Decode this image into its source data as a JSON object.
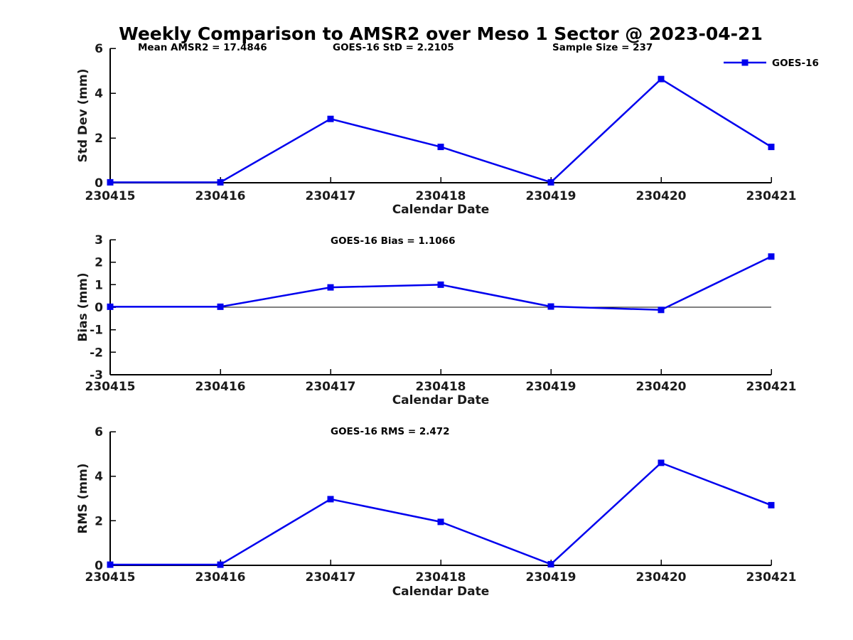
{
  "figure_title": "Weekly Comparison to AMSR2 over Meso 1 Sector @ 2023-04-21",
  "colors": {
    "line": "#0000EE",
    "axis": "#000000",
    "tick_text": "#1a1a1a",
    "zero_line": "#000000",
    "background": "#ffffff"
  },
  "legend": {
    "label": "GOES-16",
    "position": "top-right",
    "marker": "filled-square"
  },
  "chart_data": [
    {
      "type": "line",
      "name": "std-dev",
      "annotations": [
        "Mean AMSR2 = 17.4846",
        "GOES-16 StD = 2.2105",
        "Sample Size = 237"
      ],
      "ylabel": "Std Dev (mm)",
      "xlabel": "Calendar Date",
      "categories": [
        "230415",
        "230416",
        "230417",
        "230418",
        "230419",
        "230420",
        "230421"
      ],
      "ylim": [
        0,
        6
      ],
      "yticks": [
        0,
        2,
        4,
        6
      ],
      "grid": false,
      "has_legend": true,
      "zero_line": false,
      "series": [
        {
          "name": "GOES-16",
          "values": [
            0.02,
            0.02,
            2.85,
            1.6,
            0.02,
            4.63,
            1.6
          ]
        }
      ]
    },
    {
      "type": "line",
      "name": "bias",
      "title": "GOES-16 Bias  = 1.1066",
      "ylabel": "Bias (mm)",
      "xlabel": "Calendar Date",
      "categories": [
        "230415",
        "230416",
        "230417",
        "230418",
        "230419",
        "230420",
        "230421"
      ],
      "ylim": [
        -3,
        3
      ],
      "yticks": [
        -3,
        -2,
        -1,
        0,
        1,
        2,
        3
      ],
      "grid": false,
      "has_legend": false,
      "zero_line": true,
      "series": [
        {
          "name": "GOES-16",
          "values": [
            0.02,
            0.02,
            0.88,
            1.0,
            0.03,
            -0.12,
            2.25
          ]
        }
      ]
    },
    {
      "type": "line",
      "name": "rms",
      "title": "GOES-16 RMS = 2.472",
      "ylabel": "RMS (mm)",
      "xlabel": "Calendar Date",
      "categories": [
        "230415",
        "230416",
        "230417",
        "230418",
        "230419",
        "230420",
        "230421"
      ],
      "ylim": [
        0,
        6
      ],
      "yticks": [
        0,
        2,
        4,
        6
      ],
      "grid": false,
      "has_legend": false,
      "zero_line": false,
      "series": [
        {
          "name": "GOES-16",
          "values": [
            0.03,
            0.03,
            2.97,
            1.95,
            0.05,
            4.6,
            2.7
          ]
        }
      ]
    }
  ]
}
